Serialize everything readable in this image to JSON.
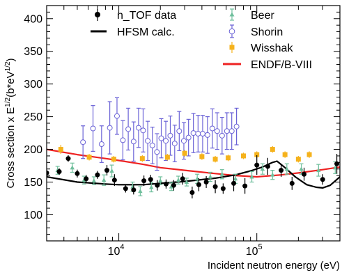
{
  "chart_data": {
    "type": "scatter",
    "xscale": "log",
    "xlim": [
      3000,
      400000
    ],
    "ylim": [
      60,
      420
    ],
    "xlabel": "Incident neutron energy (eV)",
    "ylabel_main": "Cross section x E",
    "ylabel_exp1": "1/2",
    "ylabel_mid": "(b*eV",
    "ylabel_exp2": "1/2",
    "ylabel_end": ")",
    "xtick_major": [
      {
        "value": 10000,
        "base": "10",
        "exp": "4"
      },
      {
        "value": 100000,
        "base": "10",
        "exp": "5"
      }
    ],
    "yticks": [
      100,
      150,
      200,
      250,
      300,
      350,
      400
    ],
    "legend": [
      {
        "id": "ntof",
        "label": "n_TOF data"
      },
      {
        "id": "hfsm",
        "label": "HFSM calc."
      },
      {
        "id": "beer",
        "label": "Beer"
      },
      {
        "id": "shorin",
        "label": "Shorin"
      },
      {
        "id": "wisshak",
        "label": "Wisshak"
      },
      {
        "id": "endf",
        "label": "ENDF/B-VIII"
      }
    ],
    "colors": {
      "ntof": "#000000",
      "hfsm": "#000000",
      "beer": "#6fbf9c",
      "shorin": "#6a62d6",
      "wisshak": "#f5b21c",
      "endf": "#ee2222"
    },
    "series": [
      {
        "id": "ntof",
        "kind": "points",
        "points": [
          [
            3000,
            164,
            5
          ],
          [
            3700,
            166,
            5
          ],
          [
            4300,
            186,
            5
          ],
          [
            5000,
            163,
            6
          ],
          [
            5800,
            155,
            6
          ],
          [
            7000,
            161,
            6
          ],
          [
            8200,
            168,
            8
          ],
          [
            9300,
            153,
            9
          ],
          [
            11200,
            140,
            6
          ],
          [
            12800,
            138,
            7
          ],
          [
            15200,
            152,
            8
          ],
          [
            17000,
            154,
            7
          ],
          [
            19000,
            145,
            8
          ],
          [
            22000,
            147,
            7
          ],
          [
            25000,
            145,
            8
          ],
          [
            29000,
            155,
            9
          ],
          [
            34000,
            134,
            9
          ],
          [
            38000,
            146,
            10
          ],
          [
            43000,
            150,
            9
          ],
          [
            50000,
            143,
            10
          ],
          [
            57000,
            140,
            8
          ],
          [
            68000,
            148,
            12
          ],
          [
            82000,
            144,
            12
          ],
          [
            100000,
            176,
            15
          ],
          [
            120000,
            174,
            13
          ],
          [
            150000,
            168,
            10
          ],
          [
            180000,
            148,
            10
          ],
          [
            220000,
            162,
            10
          ],
          [
            300000,
            154,
            8
          ],
          [
            380000,
            178,
            15
          ]
        ]
      },
      {
        "id": "beer",
        "kind": "points",
        "points": [
          [
            3600,
            168,
            6
          ],
          [
            4600,
            172,
            7
          ],
          [
            5600,
            153,
            6
          ],
          [
            6600,
            152,
            6
          ],
          [
            7800,
            153,
            8
          ],
          [
            8900,
            167,
            9
          ],
          [
            12600,
            143,
            7
          ],
          [
            14300,
            136,
            7
          ],
          [
            17200,
            142,
            7
          ],
          [
            20000,
            152,
            6
          ],
          [
            24000,
            143,
            6
          ],
          [
            27000,
            153,
            6
          ],
          [
            31000,
            150,
            6
          ],
          [
            37000,
            155,
            7
          ],
          [
            46000,
            158,
            7
          ],
          [
            56000,
            162,
            7
          ],
          [
            70000,
            155,
            7
          ],
          [
            92000,
            158,
            8
          ],
          [
            110000,
            170,
            8
          ],
          [
            130000,
            161,
            7
          ],
          [
            165000,
            170,
            8
          ],
          [
            210000,
            170,
            8
          ],
          [
            280000,
            168,
            9
          ],
          [
            370000,
            172,
            9
          ]
        ]
      },
      {
        "id": "shorin",
        "kind": "points",
        "points": [
          [
            5500,
            211,
            25
          ],
          [
            6500,
            232,
            35
          ],
          [
            7500,
            208,
            28
          ],
          [
            8600,
            233,
            40
          ],
          [
            9700,
            251,
            28
          ],
          [
            10700,
            214,
            30
          ],
          [
            11700,
            231,
            32
          ],
          [
            12800,
            212,
            30
          ],
          [
            13900,
            233,
            30
          ],
          [
            15000,
            229,
            33
          ],
          [
            16200,
            213,
            30
          ],
          [
            17500,
            206,
            28
          ],
          [
            18900,
            196,
            28
          ],
          [
            20300,
            217,
            30
          ],
          [
            21900,
            213,
            30
          ],
          [
            23600,
            221,
            30
          ],
          [
            25400,
            209,
            28
          ],
          [
            27400,
            228,
            30
          ],
          [
            29600,
            213,
            28
          ],
          [
            32000,
            218,
            28
          ],
          [
            34700,
            225,
            30
          ],
          [
            37500,
            224,
            28
          ],
          [
            40500,
            224,
            28
          ],
          [
            43900,
            222,
            28
          ],
          [
            47600,
            232,
            30
          ],
          [
            51600,
            228,
            28
          ],
          [
            56000,
            221,
            28
          ],
          [
            60700,
            228,
            28
          ],
          [
            65800,
            228,
            28
          ],
          [
            71300,
            235,
            28
          ]
        ]
      },
      {
        "id": "wisshak",
        "kind": "points",
        "points": [
          [
            3800,
            200,
            7
          ],
          [
            6100,
            188,
            5
          ],
          [
            9200,
            185,
            5
          ],
          [
            14800,
            186,
            5
          ],
          [
            22500,
            188,
            5
          ],
          [
            30000,
            194,
            5
          ],
          [
            40000,
            189,
            5
          ],
          [
            50000,
            185,
            5
          ],
          [
            62000,
            187,
            5
          ],
          [
            80000,
            190,
            5
          ],
          [
            100000,
            192,
            5
          ],
          [
            130000,
            200,
            5
          ],
          [
            160000,
            192,
            5
          ],
          [
            200000,
            185,
            5
          ],
          [
            240000,
            192,
            5
          ]
        ]
      },
      {
        "id": "endf",
        "kind": "line",
        "points": [
          [
            3000,
            200
          ],
          [
            5000,
            192
          ],
          [
            8000,
            186
          ],
          [
            10000,
            183
          ],
          [
            15000,
            177
          ],
          [
            20000,
            172
          ],
          [
            30000,
            168
          ],
          [
            50000,
            163
          ],
          [
            70000,
            160
          ],
          [
            100000,
            158
          ],
          [
            150000,
            161
          ],
          [
            200000,
            164
          ],
          [
            300000,
            169
          ],
          [
            400000,
            173
          ]
        ]
      },
      {
        "id": "hfsm",
        "kind": "line",
        "points": [
          [
            3000,
            158
          ],
          [
            5000,
            150
          ],
          [
            8000,
            147
          ],
          [
            10000,
            146
          ],
          [
            15000,
            146
          ],
          [
            20000,
            148
          ],
          [
            30000,
            151
          ],
          [
            50000,
            156
          ],
          [
            70000,
            161
          ],
          [
            90000,
            167
          ],
          [
            110000,
            173
          ],
          [
            130000,
            180
          ],
          [
            140000,
            182
          ],
          [
            160000,
            172
          ],
          [
            190000,
            158
          ],
          [
            230000,
            146
          ],
          [
            270000,
            142
          ],
          [
            300000,
            141
          ],
          [
            340000,
            145
          ],
          [
            400000,
            158
          ]
        ]
      }
    ]
  }
}
